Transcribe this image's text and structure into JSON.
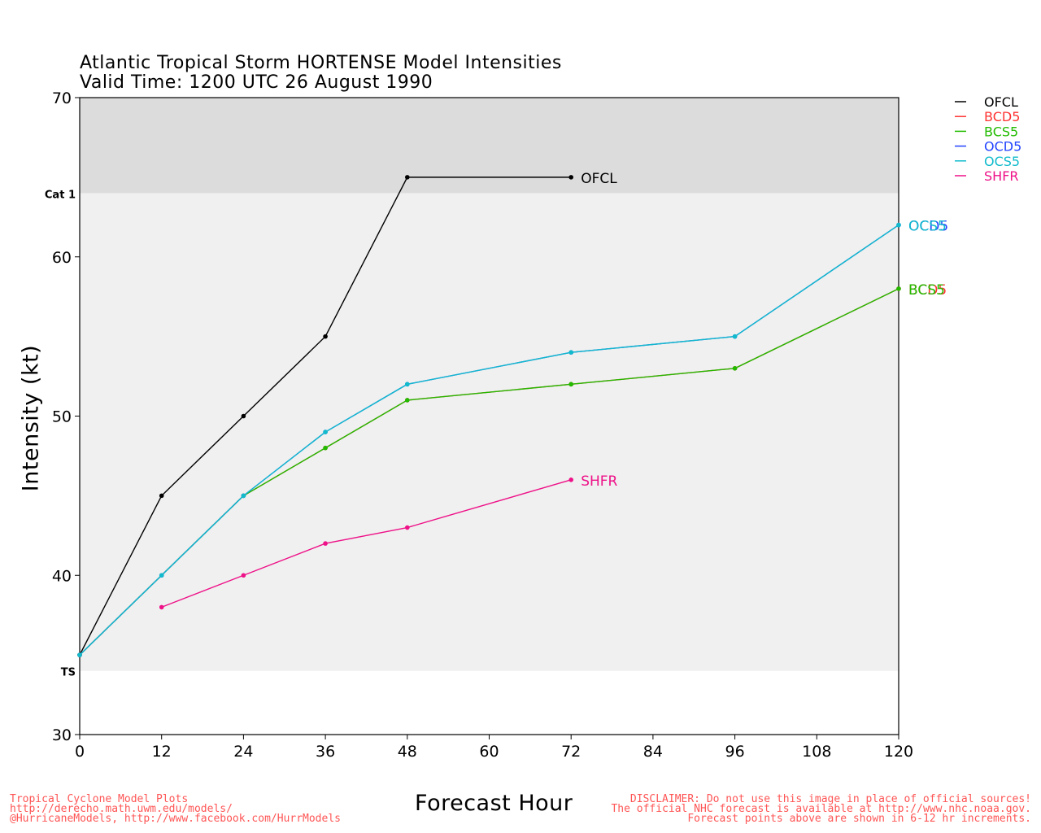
{
  "header": {
    "title_line1": "Atlantic Tropical Storm HORTENSE Model Intensities",
    "title_line2": "Valid Time: 1200 UTC 26 August 1990"
  },
  "chart_data": {
    "type": "line",
    "xlabel": "Forecast Hour",
    "ylabel": "Intensity (kt)",
    "xlim": [
      0,
      120
    ],
    "ylim": [
      30,
      70
    ],
    "x_ticks": [
      0,
      12,
      24,
      36,
      48,
      60,
      72,
      84,
      96,
      108,
      120
    ],
    "y_ticks": [
      30,
      40,
      50,
      60,
      70
    ],
    "bands": [
      {
        "label": "TS",
        "from": 34,
        "to": 64,
        "color": "#f0f0f0"
      },
      {
        "label": "Cat 1",
        "from": 64,
        "to": 70,
        "color": "#dcdcdc"
      }
    ],
    "legend_position": "top-right",
    "series": [
      {
        "name": "OFCL",
        "color": "#000000",
        "x": [
          0,
          12,
          24,
          36,
          48,
          72
        ],
        "values": [
          35,
          45,
          50,
          55,
          65,
          65
        ],
        "end_label": "OFCL"
      },
      {
        "name": "BCD5",
        "color": "#ff3333",
        "x": [
          0,
          24,
          36,
          48,
          72,
          96,
          120
        ],
        "values": [
          35,
          45,
          48,
          51,
          52,
          53,
          58
        ],
        "end_label": "BCD5"
      },
      {
        "name": "BCS5",
        "color": "#22bb00",
        "x": [
          0,
          24,
          36,
          48,
          72,
          96,
          120
        ],
        "values": [
          35,
          45,
          48,
          51,
          52,
          53,
          58
        ],
        "end_label": "BCS5"
      },
      {
        "name": "OCD5",
        "color": "#2244ff",
        "x": [
          0,
          12,
          24,
          36,
          48,
          72,
          96,
          120
        ],
        "values": [
          35,
          40,
          45,
          49,
          52,
          54,
          55,
          62
        ],
        "end_label": "OCD5"
      },
      {
        "name": "OCS5",
        "color": "#11bbcc",
        "x": [
          0,
          12,
          24,
          36,
          48,
          72,
          96,
          120
        ],
        "values": [
          35,
          40,
          45,
          49,
          52,
          54,
          55,
          62
        ],
        "end_label": "OCS5"
      },
      {
        "name": "SHFR",
        "color": "#ee1188",
        "x": [
          12,
          24,
          36,
          48,
          72
        ],
        "values": [
          38,
          40,
          42,
          43,
          46
        ],
        "end_label": "SHFR"
      }
    ]
  },
  "footer": {
    "left_lines": [
      "Tropical Cyclone Model Plots",
      "http://derecho.math.uwm.edu/models/",
      "@HurricaneModels, http://www.facebook.com/HurrModels"
    ],
    "right_lines": [
      "DISCLAIMER: Do not use this image in place of official sources!",
      "The official NHC forecast is available at http://www.nhc.noaa.gov.",
      "Forecast points above are shown in 6-12 hr increments."
    ]
  }
}
